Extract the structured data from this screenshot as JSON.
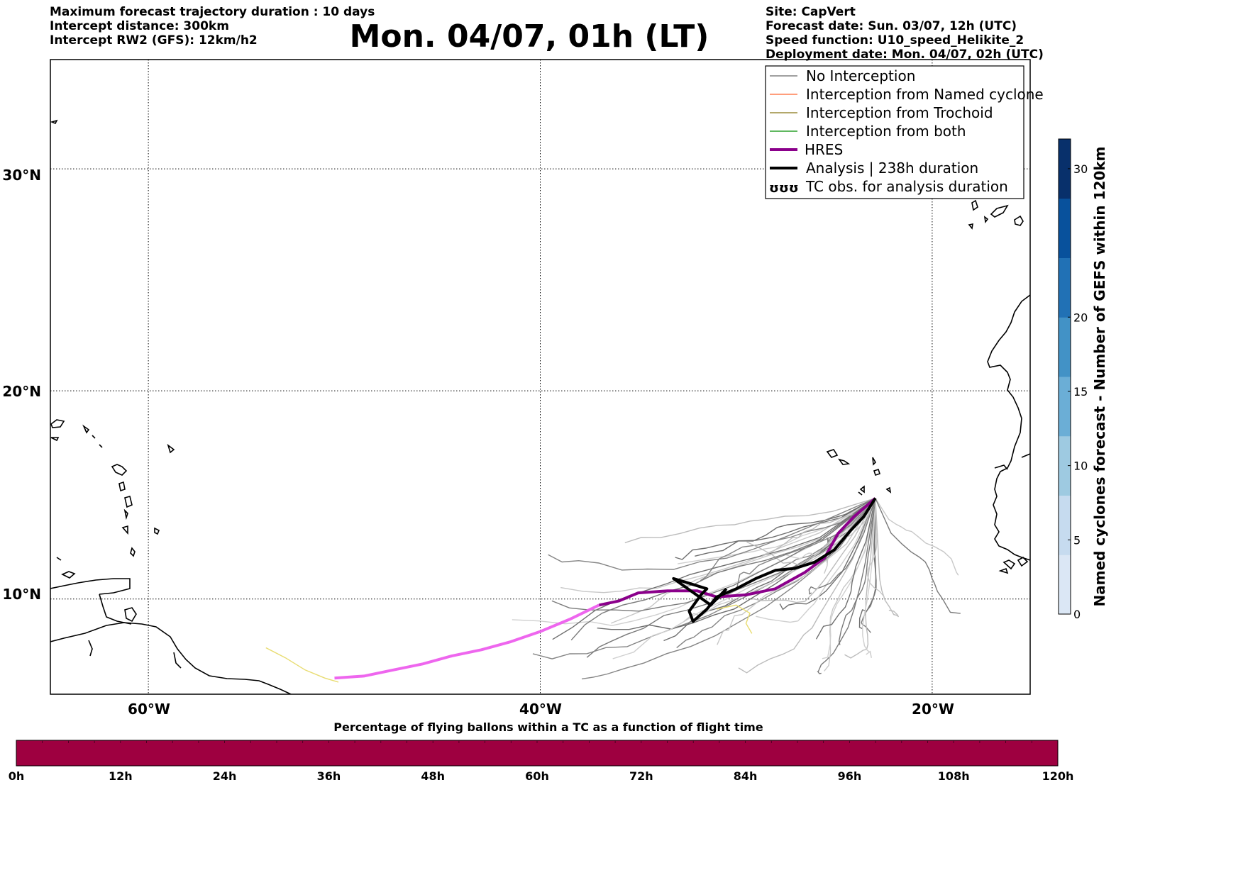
{
  "header": {
    "left_lines": [
      "Maximum forecast trajectory duration : 10 days",
      "Intercept distance: 300km",
      "Intercept RW2 (GFS):  12km/h2"
    ],
    "title": "Mon. 04/07, 01h (LT)",
    "right_lines": [
      "Site: CapVert",
      "Forecast date: Sun. 03/07, 12h (UTC)",
      "Speed function: U10_speed_Helikite_2",
      "Deployment date: Mon. 04/07, 02h (UTC)"
    ]
  },
  "map": {
    "lon_range": [
      -65,
      -15
    ],
    "lat_range": [
      5.3,
      34.6
    ],
    "lat_labels": [
      {
        "value": 30,
        "label": "30°N"
      },
      {
        "value": 20,
        "label": "20°N"
      },
      {
        "value": 10,
        "label": "10°N"
      }
    ],
    "lon_labels": [
      {
        "value": -60,
        "label": "60°W"
      },
      {
        "value": -40,
        "label": "40°W"
      },
      {
        "value": -20,
        "label": "20°W"
      }
    ],
    "grid": "dotted"
  },
  "legend": {
    "placement": "top-right",
    "items": [
      {
        "label": "No Interception",
        "color": "#808080",
        "style": "thin"
      },
      {
        "label": "Interception from Named cyclone",
        "color": "#ff7f50",
        "style": "thin"
      },
      {
        "label": "Interception from Trochoid",
        "color": "#9a8c3a",
        "style": "thin"
      },
      {
        "label": "Interception from both",
        "color": "#2ca02c",
        "style": "thin"
      },
      {
        "label": "HRES",
        "color": "#8b008b",
        "style": "thick"
      },
      {
        "label": "Analysis | 238h duration",
        "color": "#000000",
        "style": "thick"
      },
      {
        "label": "TC obs. for analysis duration",
        "color": "#000000",
        "style": "symbol",
        "symbol": "ʊʊʊ"
      }
    ]
  },
  "colorbar_right": {
    "label": "Named cyclones forecast - Number of GEFS within 120km",
    "range": [
      0,
      32
    ],
    "ticks": [
      0,
      5,
      10,
      15,
      20,
      30
    ],
    "colors": [
      "#dbe7f5",
      "#c6dbef",
      "#9ecae1",
      "#6baed6",
      "#4292c6",
      "#2171b5",
      "#08519c",
      "#08306b"
    ]
  },
  "colorbar_bottom": {
    "title": "Percentage of flying ballons within a TC as a function of flight time",
    "fill_color": "#9e0040",
    "ticks": [
      "0h",
      "12h",
      "24h",
      "36h",
      "48h",
      "60h",
      "72h",
      "84h",
      "96h",
      "108h",
      "120h"
    ]
  },
  "site": {
    "lon": -22.9,
    "lat": 14.9
  },
  "trajectories": {
    "hres": {
      "color_forecast": "#8b008b",
      "color_extended": "#ee66ee",
      "points": [
        [
          -22.9,
          14.9
        ],
        [
          -24,
          14.0
        ],
        [
          -24.8,
          13.2
        ],
        [
          -25.5,
          12.0
        ],
        [
          -26.5,
          11.3
        ],
        [
          -28,
          10.5
        ],
        [
          -29.5,
          10.2
        ],
        [
          -31,
          10.1
        ],
        [
          -32,
          10.4
        ],
        [
          -33.5,
          10.4
        ],
        [
          -35,
          10.3
        ],
        [
          -36,
          9.9
        ],
        [
          -37,
          9.7
        ]
      ],
      "extended": [
        [
          -37,
          9.7
        ],
        [
          -38.5,
          9.0
        ],
        [
          -40,
          8.4
        ],
        [
          -41.5,
          7.9
        ],
        [
          -43,
          7.5
        ],
        [
          -44.5,
          7.2
        ],
        [
          -46,
          6.8
        ],
        [
          -47.5,
          6.5
        ],
        [
          -49,
          6.2
        ],
        [
          -50.5,
          6.1
        ]
      ]
    },
    "analysis": {
      "color": "#000000",
      "points": [
        [
          -22.9,
          14.9
        ],
        [
          -23.5,
          14.0
        ],
        [
          -24.2,
          13.3
        ],
        [
          -25,
          12.4
        ],
        [
          -26,
          11.8
        ],
        [
          -27,
          11.5
        ],
        [
          -28,
          11.4
        ],
        [
          -29,
          11.0
        ],
        [
          -30,
          10.5
        ],
        [
          -31,
          10.1
        ],
        [
          -31.5,
          9.5
        ],
        [
          -32.2,
          8.9
        ],
        [
          -32.4,
          9.4
        ],
        [
          -31.8,
          10.2
        ],
        [
          -31.5,
          10.5
        ],
        [
          -32.5,
          10.8
        ],
        [
          -33.2,
          11.0
        ],
        [
          -31.3,
          9.7
        ],
        [
          -30.5,
          10.5
        ]
      ]
    },
    "yellow": {
      "color": "#e8dc70",
      "points": [
        [
          -54,
          7.6
        ],
        [
          -53,
          7.1
        ],
        [
          -52,
          6.5
        ],
        [
          -51,
          6.1
        ],
        [
          -50.3,
          5.9
        ]
      ],
      "extra": [
        [
          -31,
          9.5
        ],
        [
          -30,
          9.7
        ],
        [
          -29.3,
          9.3
        ],
        [
          -29.5,
          8.8
        ],
        [
          -29.2,
          8.3
        ]
      ]
    }
  }
}
